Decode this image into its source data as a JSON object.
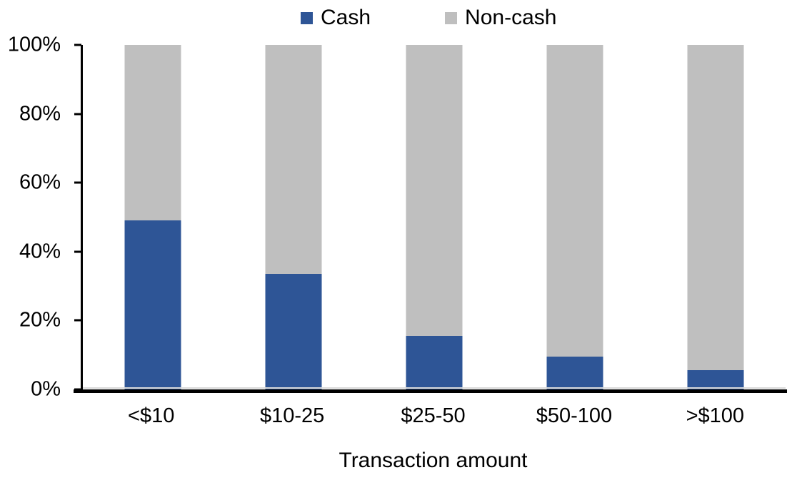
{
  "chart_data": {
    "type": "bar",
    "variant": "stacked-100-percent",
    "title": "",
    "xlabel": "Transaction amount",
    "ylabel": "",
    "categories": [
      "<$10",
      "$10-25",
      "$25-50",
      "$50-100",
      ">$100"
    ],
    "series": [
      {
        "name": "Cash",
        "color": "#2E5596",
        "values": [
          49,
          33.5,
          15.5,
          9.5,
          5.5
        ]
      },
      {
        "name": "Non-cash",
        "color": "#BFBFBF",
        "values": [
          51,
          66.5,
          84.5,
          90.5,
          94.5
        ]
      }
    ],
    "ylim": [
      0,
      100
    ],
    "yticks": [
      "0%",
      "20%",
      "40%",
      "60%",
      "80%",
      "100%"
    ],
    "legend_position": "top",
    "grid": false,
    "axis_color": "#000000",
    "zero_gridline_color": "#D9D9D9"
  }
}
